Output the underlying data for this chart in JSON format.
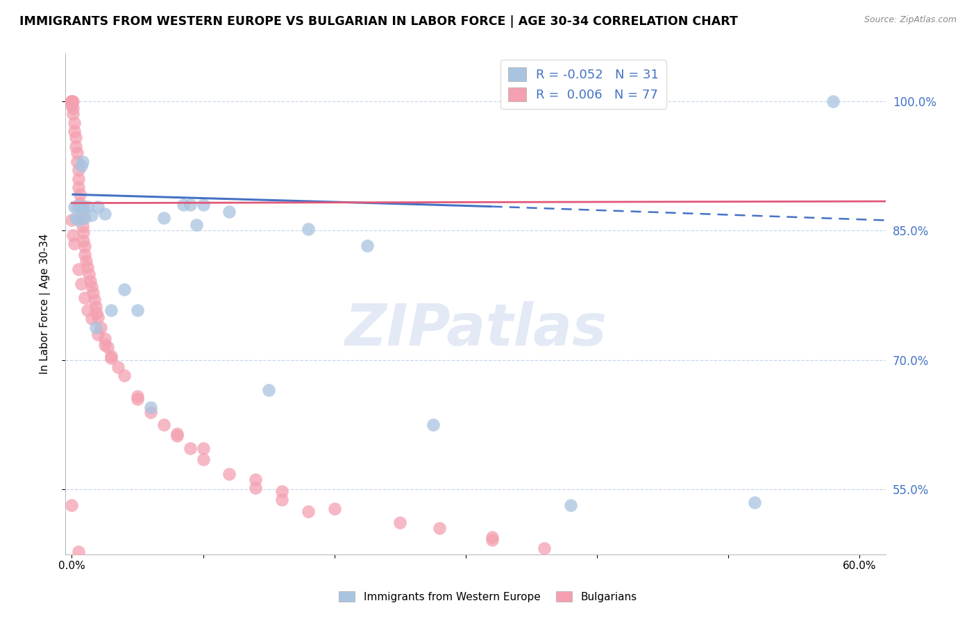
{
  "title": "IMMIGRANTS FROM WESTERN EUROPE VS BULGARIAN IN LABOR FORCE | AGE 30-34 CORRELATION CHART",
  "source": "Source: ZipAtlas.com",
  "ylabel": "In Labor Force | Age 30-34",
  "watermark": "ZIPatlas",
  "legend_r_blue": "-0.052",
  "legend_n_blue": "31",
  "legend_r_pink": "0.006",
  "legend_n_pink": "77",
  "blue_color": "#a8c4e0",
  "pink_color": "#f4a0b0",
  "trend_blue": "#4472c4",
  "trend_pink": "#e05878",
  "right_axis_color": "#4472c4",
  "ytick_vals": [
    0.55,
    0.7,
    0.85,
    1.0
  ],
  "ytick_labels": [
    "55.0%",
    "70.0%",
    "85.0%",
    "100.0%"
  ],
  "ylim": [
    0.475,
    1.055
  ],
  "xlim": [
    -0.005,
    0.62
  ],
  "blue_x": [
    0.002,
    0.003,
    0.004,
    0.005,
    0.006,
    0.007,
    0.008,
    0.009,
    0.01,
    0.012,
    0.015,
    0.018,
    0.02,
    0.025,
    0.03,
    0.04,
    0.05,
    0.06,
    0.07,
    0.085,
    0.09,
    0.095,
    0.1,
    0.12,
    0.15,
    0.18,
    0.225,
    0.275,
    0.38,
    0.52,
    0.58
  ],
  "blue_y": [
    0.878,
    0.865,
    0.878,
    0.862,
    0.878,
    0.925,
    0.93,
    0.878,
    0.865,
    0.878,
    0.868,
    0.738,
    0.878,
    0.87,
    0.758,
    0.782,
    0.758,
    0.645,
    0.865,
    0.88,
    0.88,
    0.857,
    0.88,
    0.872,
    0.665,
    0.852,
    0.833,
    0.625,
    0.532,
    0.535,
    1.0
  ],
  "pink_x": [
    0.0,
    0.0,
    0.0,
    0.0,
    0.0,
    0.001,
    0.001,
    0.001,
    0.002,
    0.002,
    0.003,
    0.003,
    0.004,
    0.004,
    0.005,
    0.005,
    0.005,
    0.006,
    0.006,
    0.007,
    0.007,
    0.008,
    0.008,
    0.009,
    0.009,
    0.01,
    0.01,
    0.011,
    0.012,
    0.013,
    0.014,
    0.015,
    0.016,
    0.017,
    0.018,
    0.019,
    0.02,
    0.022,
    0.025,
    0.027,
    0.03,
    0.035,
    0.04,
    0.05,
    0.06,
    0.07,
    0.08,
    0.09,
    0.1,
    0.12,
    0.14,
    0.16,
    0.18,
    0.28,
    0.32,
    0.0,
    0.001,
    0.002,
    0.005,
    0.007,
    0.01,
    0.012,
    0.015,
    0.02,
    0.025,
    0.03,
    0.05,
    0.08,
    0.1,
    0.14,
    0.16,
    0.2,
    0.25,
    0.32,
    0.36,
    0.0,
    0.005
  ],
  "pink_y": [
    1.0,
    1.0,
    1.0,
    1.0,
    0.995,
    1.0,
    0.992,
    0.985,
    0.975,
    0.965,
    0.958,
    0.948,
    0.94,
    0.93,
    0.92,
    0.91,
    0.9,
    0.892,
    0.882,
    0.878,
    0.868,
    0.865,
    0.855,
    0.848,
    0.838,
    0.832,
    0.822,
    0.815,
    0.808,
    0.8,
    0.792,
    0.785,
    0.778,
    0.77,
    0.762,
    0.755,
    0.75,
    0.738,
    0.725,
    0.715,
    0.702,
    0.692,
    0.682,
    0.655,
    0.64,
    0.625,
    0.612,
    0.598,
    0.585,
    0.568,
    0.552,
    0.538,
    0.525,
    0.505,
    0.492,
    0.862,
    0.845,
    0.835,
    0.805,
    0.788,
    0.772,
    0.758,
    0.748,
    0.73,
    0.718,
    0.705,
    0.658,
    0.615,
    0.598,
    0.562,
    0.548,
    0.528,
    0.512,
    0.495,
    0.482,
    0.532,
    0.478
  ],
  "background_color": "#ffffff",
  "grid_color": "#c8d8e8",
  "figsize": [
    14.06,
    8.92
  ]
}
